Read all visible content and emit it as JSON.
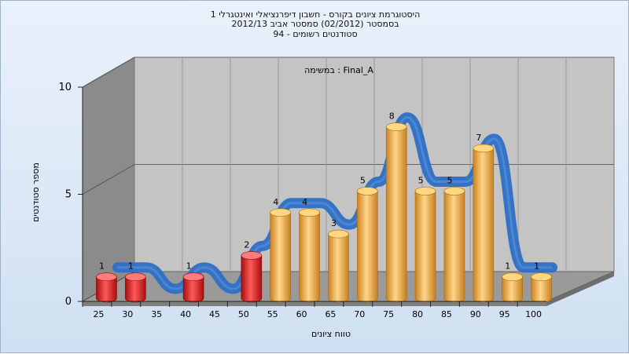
{
  "title": {
    "line1": "היסטוגרמת ציונים בקורס - חשבון דיפרנציאלי ואינטגרלי 1",
    "line2": "בסמסטר  (02/2012)  סמסטר אביב 2012/13",
    "line3": "סטודנטים רשומים - 94"
  },
  "colors": {
    "fail_bar": "#e41b1b",
    "pass_bar": "#e9a440",
    "curve": "#2e6fc4",
    "wall_left": "#8b8b8b",
    "wall_back": "#c4c4c4",
    "floor": "#9a9a9a"
  },
  "chart_data": {
    "type": "bar",
    "title": "במשימה : Final_A",
    "xlabel": "טווח ציונים",
    "ylabel": "מספר סטודנטים",
    "categories": [
      "25",
      "30",
      "35",
      "40",
      "45",
      "50",
      "55",
      "60",
      "65",
      "70",
      "75",
      "80",
      "85",
      "90",
      "95",
      "100"
    ],
    "values": [
      1,
      1,
      0,
      1,
      0,
      2,
      4,
      4,
      3,
      5,
      8,
      5,
      5,
      7,
      1,
      1
    ],
    "bar_colors": [
      "fail",
      "fail",
      "fail",
      "fail",
      "fail",
      "fail",
      "pass",
      "pass",
      "pass",
      "pass",
      "pass",
      "pass",
      "pass",
      "pass",
      "pass",
      "pass"
    ],
    "ylim": [
      0,
      10
    ],
    "yticks": [
      0,
      5,
      10
    ],
    "overlay": "smoothed-distribution-curve"
  }
}
